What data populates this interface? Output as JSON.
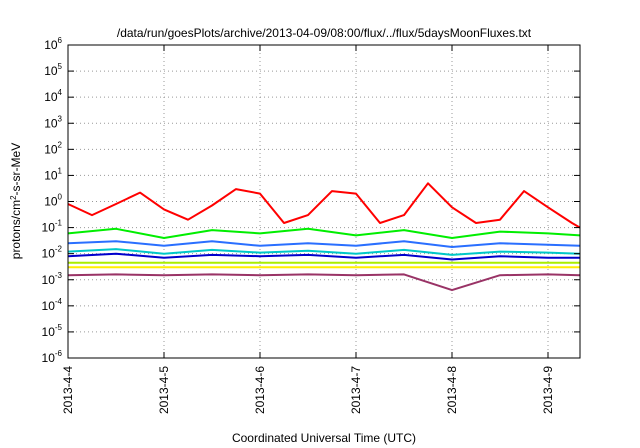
{
  "chart_data": {
    "type": "line",
    "title": "/data/run/goesPlots/archive/2013-04-09/08:00/flux/../flux/5daysMoonFluxes.txt",
    "xlabel": "Coordinated Universal Time (UTC)",
    "ylabel": "protons/cm²-s-sr-MeV",
    "ylabel_parts": {
      "prefix": "protons/cm",
      "sup": "2",
      "suffix": "-s-sr-MeV"
    },
    "y_scale": "log",
    "ylim": [
      1e-06,
      1000000.0
    ],
    "xlim": [
      "2013-04-04 00:00",
      "2013-04-09 08:00"
    ],
    "y_ticks": [
      {
        "value": 1e-06,
        "base": "10",
        "exp": "-6"
      },
      {
        "value": 1e-05,
        "base": "10",
        "exp": "-5"
      },
      {
        "value": 0.0001,
        "base": "10",
        "exp": "-4"
      },
      {
        "value": 0.001,
        "base": "10",
        "exp": "-3"
      },
      {
        "value": 0.01,
        "base": "10",
        "exp": "-2"
      },
      {
        "value": 0.1,
        "base": "10",
        "exp": "-1"
      },
      {
        "value": 1,
        "base": "10",
        "exp": "0"
      },
      {
        "value": 10.0,
        "base": "10",
        "exp": "1"
      },
      {
        "value": 100.0,
        "base": "10",
        "exp": "2"
      },
      {
        "value": 1000.0,
        "base": "10",
        "exp": "3"
      },
      {
        "value": 10000.0,
        "base": "10",
        "exp": "4"
      },
      {
        "value": 100000.0,
        "base": "10",
        "exp": "5"
      },
      {
        "value": 1000000.0,
        "base": "10",
        "exp": "6"
      }
    ],
    "x_ticks": [
      "2013-4-4",
      "2013-4-5",
      "2013-4-6",
      "2013-4-7",
      "2013-4-8",
      "2013-4-9"
    ],
    "grid": true,
    "series": [
      {
        "color": "#ff0000",
        "x": [
          "2013-04-04 00:00",
          "2013-04-04 06:00",
          "2013-04-04 12:00",
          "2013-04-04 18:00",
          "2013-04-05 00:00",
          "2013-04-05 06:00",
          "2013-04-05 12:00",
          "2013-04-05 18:00",
          "2013-04-06 00:00",
          "2013-04-06 06:00",
          "2013-04-06 12:00",
          "2013-04-06 18:00",
          "2013-04-07 00:00",
          "2013-04-07 06:00",
          "2013-04-07 12:00",
          "2013-04-07 18:00",
          "2013-04-08 00:00",
          "2013-04-08 06:00",
          "2013-04-08 12:00",
          "2013-04-08 18:00",
          "2013-04-09 00:00",
          "2013-04-09 06:00",
          "2013-04-09 08:00"
        ],
        "y": [
          0.8,
          0.3,
          0.8,
          2.2,
          0.5,
          0.2,
          0.7,
          3.0,
          2.0,
          0.15,
          0.3,
          2.5,
          2.0,
          0.15,
          0.3,
          5.0,
          0.6,
          0.15,
          0.2,
          2.5,
          0.6,
          0.15,
          0.1
        ]
      },
      {
        "color": "#00ee00",
        "x": [
          "2013-04-04 00:00",
          "2013-04-04 12:00",
          "2013-04-05 00:00",
          "2013-04-05 12:00",
          "2013-04-06 00:00",
          "2013-04-06 12:00",
          "2013-04-07 00:00",
          "2013-04-07 12:00",
          "2013-04-08 00:00",
          "2013-04-08 12:00",
          "2013-04-09 00:00",
          "2013-04-09 08:00"
        ],
        "y": [
          0.06,
          0.09,
          0.04,
          0.08,
          0.06,
          0.09,
          0.05,
          0.08,
          0.04,
          0.07,
          0.06,
          0.05
        ]
      },
      {
        "color": "#2a6fff",
        "x": [
          "2013-04-04 00:00",
          "2013-04-04 12:00",
          "2013-04-05 00:00",
          "2013-04-05 12:00",
          "2013-04-06 00:00",
          "2013-04-06 12:00",
          "2013-04-07 00:00",
          "2013-04-07 12:00",
          "2013-04-08 00:00",
          "2013-04-08 12:00",
          "2013-04-09 00:00",
          "2013-04-09 08:00"
        ],
        "y": [
          0.025,
          0.03,
          0.02,
          0.03,
          0.02,
          0.025,
          0.02,
          0.03,
          0.018,
          0.025,
          0.022,
          0.02
        ]
      },
      {
        "color": "#00c8c8",
        "x": [
          "2013-04-04 00:00",
          "2013-04-04 12:00",
          "2013-04-05 00:00",
          "2013-04-05 12:00",
          "2013-04-06 00:00",
          "2013-04-06 12:00",
          "2013-04-07 00:00",
          "2013-04-07 12:00",
          "2013-04-08 00:00",
          "2013-04-08 12:00",
          "2013-04-09 00:00",
          "2013-04-09 08:00"
        ],
        "y": [
          0.012,
          0.015,
          0.01,
          0.014,
          0.011,
          0.013,
          0.01,
          0.014,
          0.009,
          0.012,
          0.011,
          0.01
        ]
      },
      {
        "color": "#0000cc",
        "x": [
          "2013-04-04 00:00",
          "2013-04-04 12:00",
          "2013-04-05 00:00",
          "2013-04-05 12:00",
          "2013-04-06 00:00",
          "2013-04-06 12:00",
          "2013-04-07 00:00",
          "2013-04-07 12:00",
          "2013-04-08 00:00",
          "2013-04-08 12:00",
          "2013-04-09 00:00",
          "2013-04-09 08:00"
        ],
        "y": [
          0.008,
          0.01,
          0.007,
          0.009,
          0.008,
          0.009,
          0.007,
          0.009,
          0.006,
          0.008,
          0.007,
          0.007
        ]
      },
      {
        "color": "#aaee00",
        "x": [
          "2013-04-04 00:00",
          "2013-04-05 00:00",
          "2013-04-06 00:00",
          "2013-04-07 00:00",
          "2013-04-08 00:00",
          "2013-04-09 00:00",
          "2013-04-09 08:00"
        ],
        "y": [
          0.0045,
          0.0045,
          0.0045,
          0.0045,
          0.0045,
          0.0045,
          0.0045
        ]
      },
      {
        "color": "#ffee00",
        "x": [
          "2013-04-04 00:00",
          "2013-04-05 00:00",
          "2013-04-06 00:00",
          "2013-04-07 00:00",
          "2013-04-08 00:00",
          "2013-04-09 00:00",
          "2013-04-09 08:00"
        ],
        "y": [
          0.003,
          0.003,
          0.003,
          0.003,
          0.003,
          0.003,
          0.003
        ]
      },
      {
        "color": "#993366",
        "x": [
          "2013-04-04 00:00",
          "2013-04-04 12:00",
          "2013-04-05 00:00",
          "2013-04-05 12:00",
          "2013-04-06 00:00",
          "2013-04-06 12:00",
          "2013-04-07 00:00",
          "2013-04-07 12:00",
          "2013-04-08 00:00",
          "2013-04-08 12:00",
          "2013-04-09 00:00",
          "2013-04-09 08:00"
        ],
        "y": [
          0.0015,
          0.0016,
          0.0015,
          0.0016,
          0.0015,
          0.0016,
          0.0015,
          0.0016,
          0.0004,
          0.0015,
          0.0016,
          0.0015
        ]
      }
    ]
  }
}
